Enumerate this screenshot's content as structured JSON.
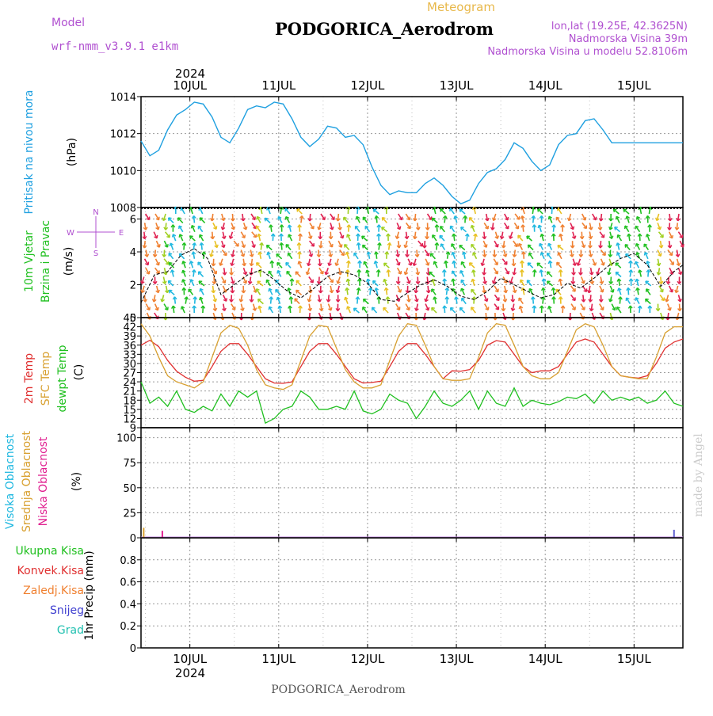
{
  "header": {
    "model_label": "Model",
    "model_name": "wrf-nmm_v3.9.1  e1km",
    "meteogram_label": "Meteogram",
    "station": "PODGORICA_Aerodrom",
    "lonlat": "lon,lat (19.25E, 42.3625N)",
    "elevation": "Nadmorska Visina 39m",
    "model_elevation": "Nadmorska Visina u modelu 52.8106m",
    "year_top": "2024",
    "year_bottom": "2024",
    "footer_station": "PODGORICA_Aerodrom",
    "watermark": "made by Angel"
  },
  "colors": {
    "pressure": "#1fa0e0",
    "temp2m": "#e03030",
    "sfc_temp": "#d8a030",
    "dewpt": "#20c020",
    "high_cloud": "#20b8e0",
    "mid_cloud": "#d8a030",
    "low_cloud": "#e02090",
    "total_precip": "#20c020",
    "conv_precip": "#e03030",
    "frozen_precip": "#f08030",
    "snow": "#4040d0",
    "graupel": "#20c0b0",
    "purple_text": "#b050d0"
  },
  "chart_data": [
    {
      "type": "line",
      "panel": "pressure",
      "title": "",
      "ylabel_lines": [
        "Pritisak na nivou mora",
        "(hPa)"
      ],
      "ylim": [
        1008,
        1014
      ],
      "yticks": [
        1008,
        1010,
        1012,
        1014
      ],
      "xticks": [
        "10JUL",
        "11JUL",
        "12JUL",
        "13JUL",
        "14JUL",
        "15JUL"
      ],
      "xlim_days": [
        -0.55,
        5.55
      ],
      "grid": true,
      "series": [
        {
          "x": [
            -0.55,
            -0.45,
            -0.35,
            -0.25,
            -0.15,
            -0.05,
            0.05,
            0.15,
            0.25,
            0.35,
            0.45,
            0.55,
            0.65,
            0.75,
            0.85,
            0.95,
            1.05,
            1.15,
            1.25,
            1.35,
            1.45,
            1.55,
            1.65,
            1.75,
            1.85,
            1.95,
            2.05,
            2.15,
            2.25,
            2.35,
            2.45,
            2.55,
            2.65,
            2.75,
            2.85,
            2.95,
            3.05,
            3.15,
            3.25,
            3.35,
            3.45,
            3.55,
            3.65,
            3.75,
            3.85,
            3.95,
            4.05,
            4.15,
            4.25,
            4.35,
            4.45,
            4.55,
            4.65,
            4.75,
            4.85,
            4.95,
            5.05,
            5.15,
            5.25,
            5.35,
            5.45,
            5.55
          ],
          "values": [
            1011.6,
            1010.8,
            1011.1,
            1012.2,
            1013.0,
            1013.3,
            1013.7,
            1013.6,
            1012.9,
            1011.8,
            1011.5,
            1012.3,
            1013.3,
            1013.5,
            1013.4,
            1013.7,
            1013.6,
            1012.8,
            1011.8,
            1011.3,
            1011.7,
            1012.4,
            1012.3,
            1011.8,
            1011.9,
            1011.4,
            1010.2,
            1009.2,
            1008.7,
            1008.9,
            1008.8,
            1008.8,
            1009.3,
            1009.6,
            1009.2,
            1008.6,
            1008.2,
            1008.4,
            1009.3,
            1009.9,
            1010.1,
            1010.6,
            1011.5,
            1011.2,
            1010.5,
            1010.0,
            1010.3,
            1011.4,
            1011.9,
            1012.0,
            1012.7,
            1012.8,
            1012.2,
            1011.5,
            1011.5,
            1011.5,
            1011.5,
            1011.5,
            1011.5,
            1011.5,
            1011.5,
            1011.5
          ]
        }
      ]
    },
    {
      "type": "line",
      "panel": "wind",
      "ylabel_lines": [
        "10m Vjetar",
        "Brzina i Pravac",
        "(m/s)"
      ],
      "axis_key": [
        "N",
        "W",
        "E",
        "S"
      ],
      "ylim": [
        0,
        6.7
      ],
      "yticks": [
        0,
        2,
        4,
        6
      ],
      "grid": true,
      "series": [
        {
          "name": "speed",
          "x": [
            -0.55,
            -0.4,
            -0.25,
            -0.1,
            0.05,
            0.2,
            0.35,
            0.5,
            0.65,
            0.8,
            0.95,
            1.1,
            1.25,
            1.4,
            1.55,
            1.7,
            1.85,
            2.0,
            2.15,
            2.3,
            2.45,
            2.6,
            2.75,
            2.9,
            3.05,
            3.2,
            3.35,
            3.5,
            3.65,
            3.8,
            3.95,
            4.1,
            4.25,
            4.4,
            4.55,
            4.7,
            4.85,
            5.0,
            5.15,
            5.3,
            5.45,
            5.55
          ],
          "values": [
            0.9,
            2.6,
            2.8,
            3.8,
            4.2,
            3.6,
            1.4,
            2.0,
            2.6,
            2.9,
            2.3,
            1.6,
            1.2,
            1.8,
            2.5,
            2.8,
            2.6,
            2.1,
            1.1,
            1.0,
            1.5,
            2.0,
            2.3,
            1.9,
            1.3,
            1.1,
            1.6,
            2.4,
            2.0,
            1.6,
            1.2,
            1.4,
            2.1,
            1.8,
            2.4,
            3.1,
            3.6,
            3.9,
            3.2,
            1.9,
            2.8,
            3.2
          ]
        }
      ]
    },
    {
      "type": "line",
      "panel": "temperature",
      "ylabel_lines": [
        "2m Temp",
        "SFC Temp",
        "dewpt Temp",
        "(C)"
      ],
      "ylim": [
        9,
        45
      ],
      "yticks": [
        9,
        12,
        15,
        18,
        21,
        24,
        27,
        30,
        33,
        36,
        39,
        42,
        45
      ],
      "grid": true,
      "series": [
        {
          "name": "2m Temp",
          "x": [
            -0.55,
            -0.45,
            -0.35,
            -0.25,
            -0.15,
            -0.05,
            0.05,
            0.15,
            0.25,
            0.35,
            0.45,
            0.55,
            0.65,
            0.75,
            0.85,
            0.95,
            1.05,
            1.15,
            1.25,
            1.35,
            1.45,
            1.55,
            1.65,
            1.75,
            1.85,
            1.95,
            2.05,
            2.15,
            2.25,
            2.35,
            2.45,
            2.55,
            2.65,
            2.75,
            2.85,
            2.95,
            3.05,
            3.15,
            3.25,
            3.35,
            3.45,
            3.55,
            3.65,
            3.75,
            3.85,
            3.95,
            4.05,
            4.15,
            4.25,
            4.35,
            4.45,
            4.55,
            4.65,
            4.75,
            4.85,
            4.95,
            5.05,
            5.15,
            5.25,
            5.35,
            5.45,
            5.55
          ],
          "values": [
            36,
            37.6,
            35.5,
            31,
            27.5,
            25.5,
            24.2,
            24.5,
            29,
            34,
            36.5,
            36.5,
            33,
            29,
            25,
            23.6,
            23.5,
            24,
            29,
            34,
            36.5,
            36.5,
            33,
            29,
            25,
            23.6,
            23.8,
            24.2,
            29,
            34,
            36.5,
            36.5,
            33,
            29,
            25,
            27.6,
            27.5,
            28,
            31,
            36,
            37.5,
            37,
            33,
            29,
            27,
            27.6,
            27.6,
            29,
            33,
            37,
            38,
            37,
            33,
            29,
            26,
            25.5,
            25.2,
            26,
            30,
            35,
            37,
            38
          ]
        },
        {
          "name": "SFC Temp",
          "x": [
            -0.55,
            -0.45,
            -0.35,
            -0.25,
            -0.15,
            -0.05,
            0.05,
            0.15,
            0.25,
            0.35,
            0.45,
            0.55,
            0.65,
            0.75,
            0.85,
            0.95,
            1.05,
            1.15,
            1.25,
            1.35,
            1.45,
            1.55,
            1.65,
            1.75,
            1.85,
            1.95,
            2.05,
            2.15,
            2.25,
            2.35,
            2.45,
            2.55,
            2.65,
            2.75,
            2.85,
            2.95,
            3.05,
            3.15,
            3.25,
            3.35,
            3.45,
            3.55,
            3.65,
            3.75,
            3.85,
            3.95,
            4.05,
            4.15,
            4.25,
            4.35,
            4.45,
            4.55,
            4.65,
            4.75,
            4.85,
            4.95,
            5.05,
            5.15,
            5.25,
            5.35,
            5.45,
            5.55
          ],
          "values": [
            43,
            39,
            32,
            26,
            24,
            23,
            22,
            24,
            32,
            40,
            42.5,
            41.5,
            36,
            28,
            23,
            22,
            21.5,
            23,
            31,
            39,
            42.5,
            42,
            35,
            28,
            24,
            22,
            22,
            23,
            31,
            39,
            43,
            42.5,
            36,
            29,
            25,
            24.5,
            24.5,
            25,
            32,
            40,
            43,
            42.5,
            36,
            29,
            26,
            25,
            25,
            27,
            34,
            41,
            43,
            42,
            36,
            29,
            26,
            25.5,
            25,
            25,
            32,
            40,
            42,
            42
          ]
        },
        {
          "name": "dewpt Temp",
          "x": [
            -0.55,
            -0.45,
            -0.35,
            -0.25,
            -0.15,
            -0.05,
            0.05,
            0.15,
            0.25,
            0.35,
            0.45,
            0.55,
            0.65,
            0.75,
            0.85,
            0.95,
            1.05,
            1.15,
            1.25,
            1.35,
            1.45,
            1.55,
            1.65,
            1.75,
            1.85,
            1.95,
            2.05,
            2.15,
            2.25,
            2.35,
            2.45,
            2.55,
            2.65,
            2.75,
            2.85,
            2.95,
            3.05,
            3.15,
            3.25,
            3.35,
            3.45,
            3.55,
            3.65,
            3.75,
            3.85,
            3.95,
            4.05,
            4.15,
            4.25,
            4.35,
            4.45,
            4.55,
            4.65,
            4.75,
            4.85,
            4.95,
            5.05,
            5.15,
            5.25,
            5.35,
            5.45,
            5.55
          ],
          "values": [
            24,
            17,
            19,
            16,
            21,
            15,
            14,
            16,
            14.5,
            20,
            16,
            21,
            19,
            21,
            10.5,
            12,
            15,
            16,
            21,
            19,
            15,
            15,
            16,
            15,
            21,
            14.5,
            13.5,
            15,
            20,
            18,
            17,
            12,
            16,
            21,
            17,
            16,
            18,
            21,
            15,
            21,
            17,
            16,
            22,
            16,
            18,
            17,
            16.5,
            17.5,
            19,
            18.5,
            20,
            17,
            21,
            18,
            19,
            18,
            19,
            17,
            18,
            21,
            17,
            16
          ]
        }
      ]
    },
    {
      "type": "bar",
      "panel": "cloud",
      "ylabel_lines": [
        "Visoka Oblacnost",
        "Srednja Oblacnost",
        "Niska Oblacnost",
        "(%)"
      ],
      "ylim": [
        0,
        110
      ],
      "yticks": [
        0,
        25,
        50,
        75,
        100
      ],
      "grid": true,
      "series": [
        {
          "name": "Srednja Oblacnost",
          "x": [
            -0.52
          ],
          "values": [
            10
          ]
        },
        {
          "name": "Niska Oblacnost",
          "x": [
            -0.31
          ],
          "values": [
            7
          ]
        },
        {
          "name": "Visoka Oblacnost",
          "x": [
            5.45
          ],
          "values": [
            8
          ]
        }
      ]
    },
    {
      "type": "bar",
      "panel": "precip",
      "ylabel_lines": [
        "1hr Precip (mm)"
      ],
      "legend_labels": [
        "Ukupna Kisa",
        "Konvek.Kisa",
        "Zaledj.Kisa",
        "Snijeg",
        "Grad"
      ],
      "ylim": [
        0,
        1.0
      ],
      "yticks": [
        0,
        0.2,
        0.4,
        0.6,
        0.8
      ],
      "grid": true,
      "series": []
    }
  ]
}
